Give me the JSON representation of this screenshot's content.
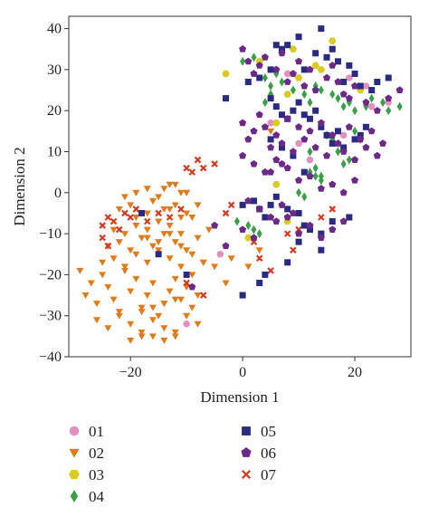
{
  "chart_data": {
    "type": "scatter",
    "xlabel": "Dimension 1",
    "ylabel": "Dimension 2",
    "xlim": [
      -31,
      30
    ],
    "ylim": [
      -40,
      43
    ],
    "xticks": [
      -20,
      0,
      20
    ],
    "yticks": [
      -40,
      -30,
      -20,
      -10,
      0,
      10,
      20,
      30,
      40
    ],
    "tick_labels": {
      "x": [
        "−20",
        "0",
        "20"
      ],
      "y": [
        "−40",
        "−30",
        "−20",
        "−10",
        "0",
        "10",
        "20",
        "30",
        "40"
      ]
    },
    "grid": false,
    "legend_position": "bottom",
    "series": [
      {
        "name": "01",
        "marker": "circle",
        "color": "#e38fc0",
        "x": [
          8,
          10,
          18,
          19,
          22,
          26,
          5,
          12,
          -10,
          -4,
          23
        ],
        "y": [
          29,
          12,
          14,
          28,
          26,
          22,
          17,
          8,
          -32,
          -15,
          21
        ]
      },
      {
        "name": "02",
        "marker": "triangle-down",
        "color": "#e07b1a",
        "x": [
          -29,
          -27,
          -28,
          -26,
          -25,
          -24,
          -23,
          -22,
          -21,
          -20,
          -19,
          -18,
          -17,
          -16,
          -15,
          -14,
          -13,
          -12,
          -11,
          -10,
          -9,
          -8,
          -26,
          -24,
          -22,
          -20,
          -18,
          -16,
          -14,
          -12,
          -10,
          -8,
          -25,
          -23,
          -21,
          -19,
          -17,
          -15,
          -13,
          -11,
          -9,
          -7,
          -24,
          -22,
          -20,
          -18,
          -16,
          -14,
          -12,
          -10,
          -8,
          -23,
          -21,
          -19,
          -17,
          -15,
          -13,
          -11,
          -9,
          -22,
          -20,
          -18,
          -16,
          -14,
          -12,
          -10,
          -21,
          -19,
          -17,
          -15,
          -13,
          -11,
          -20,
          -18,
          -16,
          -14,
          -12,
          -17,
          -15,
          -13,
          -11,
          -9,
          -7,
          -19,
          -17,
          -15,
          -13,
          -11,
          -16,
          -14,
          -12,
          -10,
          -8,
          -6,
          -5,
          -3,
          -2,
          1,
          3,
          5,
          -18,
          -16,
          -14,
          -12
        ],
        "y": [
          -19,
          -22,
          -25,
          -27,
          -20,
          -23,
          -26,
          -29,
          -19,
          -24,
          -21,
          -28,
          -25,
          -22,
          -30,
          -27,
          -24,
          -21,
          -26,
          -23,
          -28,
          -25,
          -31,
          -33,
          -30,
          -32,
          -34,
          -31,
          -33,
          -35,
          -30,
          -32,
          -17,
          -16,
          -18,
          -15,
          -17,
          -14,
          -16,
          -18,
          -20,
          -17,
          -13,
          -12,
          -14,
          -11,
          -13,
          -10,
          -12,
          -14,
          -11,
          -9,
          -10,
          -8,
          -9,
          -7,
          -8,
          -10,
          -6,
          -4,
          -3,
          -5,
          -2,
          -4,
          -3,
          -5,
          -1,
          0,
          1,
          -1,
          2,
          0,
          -36,
          -35,
          -35,
          -36,
          -34,
          -11,
          -12,
          -10,
          -13,
          -15,
          -17,
          -6,
          -5,
          -7,
          -4,
          -6,
          -2,
          1,
          2,
          0,
          -3,
          -9,
          -18,
          -22,
          -16,
          -18,
          -14,
          15,
          -29,
          -28,
          -27,
          -26
        ]
      },
      {
        "name": "03",
        "marker": "hexagon",
        "color": "#d9cc1f",
        "x": [
          3,
          8,
          10,
          13,
          21,
          -3,
          6,
          9,
          16,
          6,
          1,
          8,
          14
        ],
        "y": [
          32,
          24,
          28,
          31,
          25,
          29,
          17,
          35,
          37,
          2,
          -11,
          -7,
          30
        ]
      },
      {
        "name": "04",
        "marker": "diamond",
        "color": "#3aa048",
        "x": [
          0,
          2,
          4,
          5,
          6,
          7,
          9,
          11,
          12,
          13,
          14,
          16,
          17,
          18,
          19,
          20,
          22,
          23,
          25,
          26,
          28,
          15,
          16,
          17,
          18,
          19,
          12,
          13,
          14,
          10,
          11,
          -1,
          1,
          2,
          3,
          4,
          5,
          20,
          21,
          12,
          13,
          14
        ],
        "y": [
          32,
          33,
          28,
          26,
          29,
          27,
          25,
          24,
          22,
          26,
          25,
          24,
          23,
          21,
          22,
          20,
          21,
          23,
          22,
          20,
          21,
          14,
          13,
          10,
          7,
          8,
          5,
          4,
          3,
          0,
          -1,
          -7,
          -8,
          -9,
          -10,
          22,
          24,
          15,
          13,
          10,
          6,
          4
        ]
      },
      {
        "name": "05",
        "marker": "square",
        "color": "#2a2a82",
        "x": [
          -3,
          1,
          3,
          5,
          6,
          7,
          8,
          10,
          11,
          13,
          14,
          15,
          16,
          17,
          18,
          19,
          20,
          21,
          23,
          24,
          26,
          5,
          6,
          7,
          8,
          9,
          10,
          11,
          12,
          13,
          14,
          15,
          16,
          17,
          18,
          20,
          21,
          22,
          -18,
          -15,
          -10,
          0,
          2,
          3,
          4,
          5,
          6,
          8,
          10,
          11,
          12,
          14,
          16,
          19,
          0,
          4,
          8,
          10,
          14,
          3,
          5,
          7,
          9,
          11
        ],
        "y": [
          23,
          27,
          28,
          30,
          36,
          35,
          36,
          38,
          30,
          34,
          40,
          33,
          35,
          32,
          27,
          31,
          29,
          26,
          25,
          27,
          28,
          23,
          21,
          19,
          18,
          20,
          22,
          19,
          18,
          20,
          16,
          14,
          12,
          15,
          11,
          13,
          14,
          16,
          -5,
          -15,
          -20,
          -3,
          -2,
          -4,
          -6,
          -3,
          -1,
          -4,
          -5,
          -8,
          -9,
          -10,
          -7,
          -6,
          -25,
          -20,
          -17,
          -12,
          -14,
          -22,
          13,
          11,
          9,
          5
        ]
      },
      {
        "name": "06",
        "marker": "pentagon",
        "color": "#6b2a87",
        "x": [
          0,
          1,
          2,
          3,
          4,
          6,
          7,
          8,
          9,
          10,
          11,
          12,
          13,
          15,
          16,
          17,
          18,
          19,
          20,
          22,
          24,
          26,
          28,
          0,
          1,
          2,
          3,
          4,
          5,
          6,
          7,
          8,
          9,
          10,
          11,
          12,
          13,
          14,
          15,
          16,
          17,
          18,
          19,
          20,
          21,
          22,
          23,
          24,
          25,
          0,
          2,
          4,
          6,
          8,
          10,
          12,
          14,
          16,
          18,
          20,
          1,
          3,
          5,
          7,
          9,
          -9,
          -5,
          -3,
          0,
          2,
          6,
          8,
          10,
          12,
          14,
          16,
          18,
          5,
          7
        ],
        "y": [
          35,
          32,
          29,
          31,
          33,
          30,
          34,
          27,
          29,
          32,
          26,
          30,
          25,
          28,
          31,
          27,
          24,
          23,
          26,
          22,
          20,
          23,
          25,
          17,
          13,
          15,
          19,
          16,
          11,
          14,
          12,
          18,
          10,
          16,
          13,
          15,
          11,
          17,
          9,
          14,
          12,
          10,
          16,
          8,
          13,
          11,
          15,
          9,
          12,
          9,
          7,
          5,
          8,
          6,
          3,
          4,
          1,
          2,
          0,
          3,
          -2,
          -4,
          -6,
          -3,
          -5,
          -23,
          -8,
          -13,
          -9,
          -11,
          -7,
          -6,
          -10,
          -8,
          -11,
          -9,
          -7,
          5,
          7
        ]
      },
      {
        "name": "07",
        "marker": "x",
        "color": "#d43a1e",
        "x": [
          -24,
          -25,
          -23,
          -22,
          -24,
          -25,
          -21,
          -20,
          -19,
          -17,
          -15,
          -13,
          -11,
          -9,
          -7,
          -5,
          -3,
          -2,
          -8,
          -10,
          2,
          3,
          5,
          8,
          9,
          10,
          14,
          16,
          -10,
          -7
        ],
        "y": [
          -6,
          -8,
          -7,
          -9,
          -13,
          -11,
          -5,
          -6,
          -4,
          -7,
          -5,
          -6,
          -4,
          5,
          6,
          7,
          -5,
          -3,
          8,
          6,
          -12,
          -16,
          -19,
          -10,
          -14,
          -9,
          -6,
          -4,
          -22,
          -25
        ]
      }
    ]
  }
}
